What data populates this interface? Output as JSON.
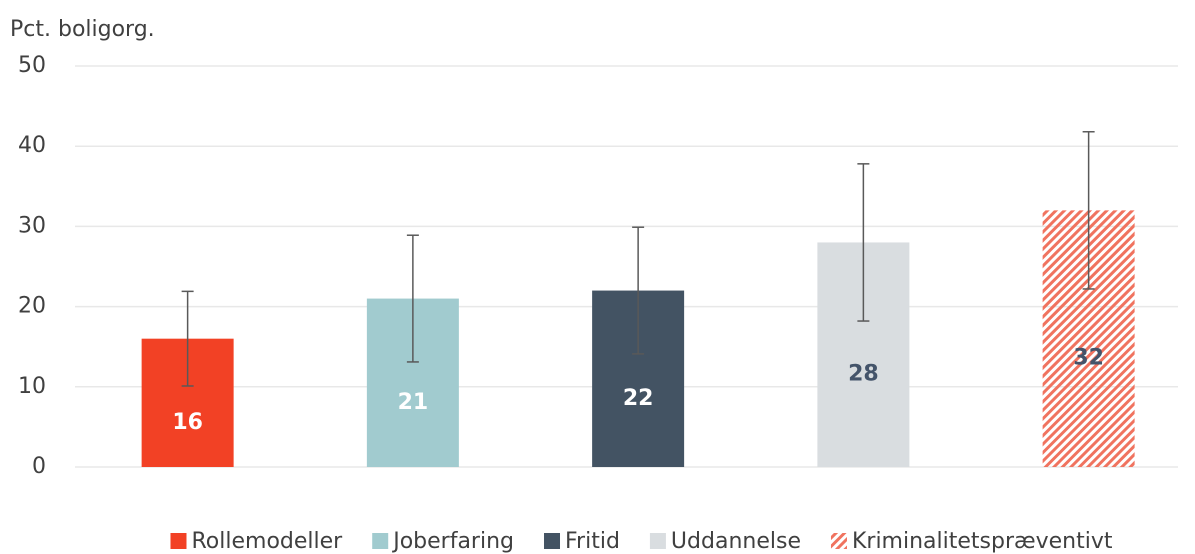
{
  "chart_data": {
    "type": "bar",
    "y_axis_label": "Pct. boligorg.",
    "categories": [
      "Rollemodeller",
      "Joberfaring",
      "Fritid",
      "Uddannelse",
      "Kriminalitetspræventivt"
    ],
    "values": [
      16,
      21,
      22,
      28,
      32
    ],
    "errors": [
      5.9,
      7.9,
      7.9,
      9.8,
      9.8
    ],
    "colors": [
      "#f24125",
      "#a1cbcf",
      "#435363",
      "#d9dde0",
      "#f0735f"
    ],
    "hatch": [
      false,
      false,
      false,
      false,
      true
    ],
    "label_colors": [
      "#ffffff",
      "#ffffff",
      "#ffffff",
      "#44546a",
      "#44546a"
    ],
    "ylim": [
      0,
      50
    ],
    "yticks": [
      0,
      10,
      20,
      30,
      40,
      50
    ],
    "grid": true,
    "legend": "bottom"
  }
}
